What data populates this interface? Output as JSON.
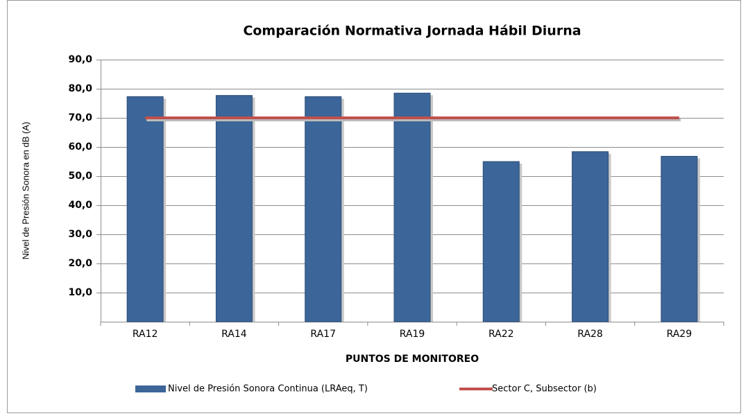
{
  "chart_data": {
    "type": "bar",
    "title": "Comparación Normativa Jornada Hábil Diurna",
    "x_label": "PUNTOS DE MONITOREO",
    "y_label": "Nivel de Presión Sonora en dB (A)",
    "categories": [
      "RA12",
      "RA14",
      "RA17",
      "RA19",
      "RA22",
      "RA28",
      "RA29"
    ],
    "series": [
      {
        "name": "Nivel de Presión Sonora Continua (LRAeq, T)",
        "type": "bar",
        "color": "#3c6699",
        "values": [
          77.3,
          77.7,
          77.3,
          78.5,
          55.0,
          58.4,
          56.8
        ]
      },
      {
        "name": "Sector C, Subsector (b)",
        "type": "line",
        "color": "#c0504d",
        "values": [
          70,
          70,
          70,
          70,
          70,
          70,
          70
        ]
      }
    ],
    "ylim": [
      0,
      90
    ],
    "yticks": [
      {
        "value": 10,
        "label": "10,0"
      },
      {
        "value": 20,
        "label": "20,0"
      },
      {
        "value": 30,
        "label": "30,0"
      },
      {
        "value": 40,
        "label": "40,0"
      },
      {
        "value": 50,
        "label": "50,0"
      },
      {
        "value": 60,
        "label": "60,0"
      },
      {
        "value": 70,
        "label": "70,0"
      },
      {
        "value": 80,
        "label": "80,0"
      },
      {
        "value": 90,
        "label": "90,0"
      }
    ],
    "grid": true
  }
}
